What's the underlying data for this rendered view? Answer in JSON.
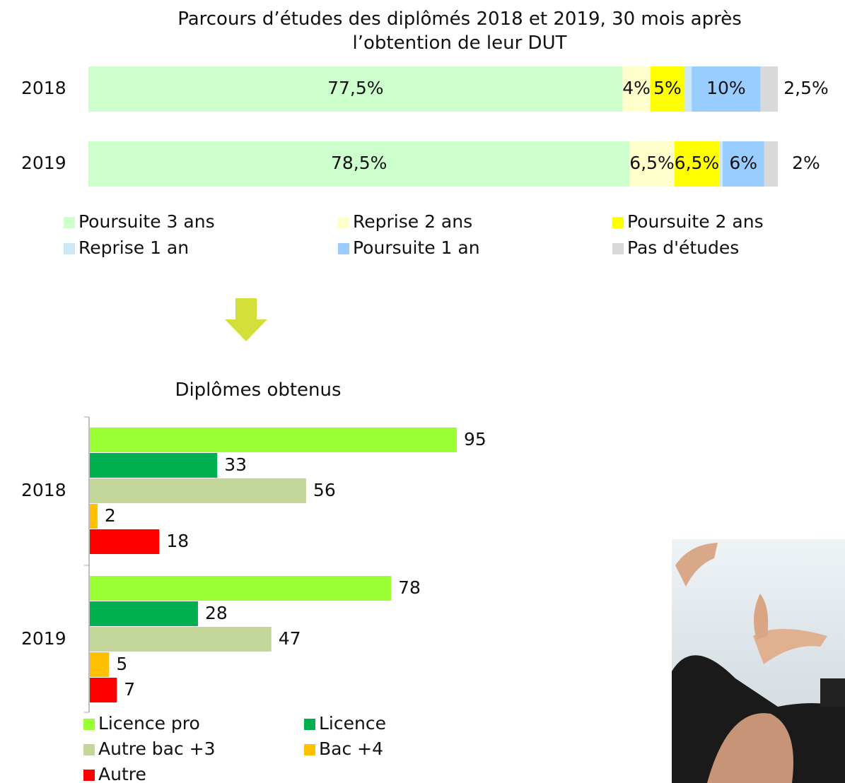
{
  "chart_data": [
    {
      "type": "bar",
      "orientation": "horizontal",
      "stacked": true,
      "title": "Parcours d’études des diplômés 2018 et 2019, 30 mois après l’obtention de leur DUT",
      "categories": [
        "2018",
        "2019"
      ],
      "series": [
        {
          "name": "Poursuite 3 ans",
          "color": "#ccffcc",
          "values": [
            77.5,
            78.5
          ],
          "value_labels": [
            "77,5%",
            "78,5%"
          ]
        },
        {
          "name": "Reprise 2 ans",
          "color": "#ffffcc",
          "values": [
            4,
            6.5
          ],
          "value_labels": [
            "4%",
            "6,5%"
          ]
        },
        {
          "name": "Poursuite 2 ans",
          "color": "#ffff00",
          "values": [
            5,
            6.5
          ],
          "value_labels": [
            "5%",
            "6,5%"
          ]
        },
        {
          "name": "Reprise 1 an",
          "color": "#cce8f8",
          "values": [
            1,
            0.5
          ]
        },
        {
          "name": "Poursuite 1 an",
          "color": "#99ccff",
          "values": [
            10,
            6
          ],
          "value_labels": [
            "10%",
            "6%"
          ]
        },
        {
          "name": "Pas d'études",
          "color": "#d9d9d9",
          "values": [
            2.5,
            2
          ],
          "value_labels": [
            "2,5%",
            "2%"
          ]
        }
      ]
    },
    {
      "type": "bar",
      "orientation": "horizontal",
      "stacked": false,
      "title": "Diplômes obtenus",
      "categories": [
        "2018",
        "2019"
      ],
      "series": [
        {
          "name": "Licence pro",
          "color": "#99ff33",
          "values": [
            95,
            78
          ]
        },
        {
          "name": "Licence",
          "color": "#00b050",
          "values": [
            33,
            28
          ]
        },
        {
          "name": "Autre bac +3",
          "color": "#c4d79b",
          "values": [
            56,
            47
          ]
        },
        {
          "name": "Bac +4",
          "color": "#ffc000",
          "values": [
            2,
            5
          ]
        },
        {
          "name": "Autre",
          "color": "#ff0000",
          "values": [
            18,
            7
          ]
        }
      ]
    }
  ]
}
